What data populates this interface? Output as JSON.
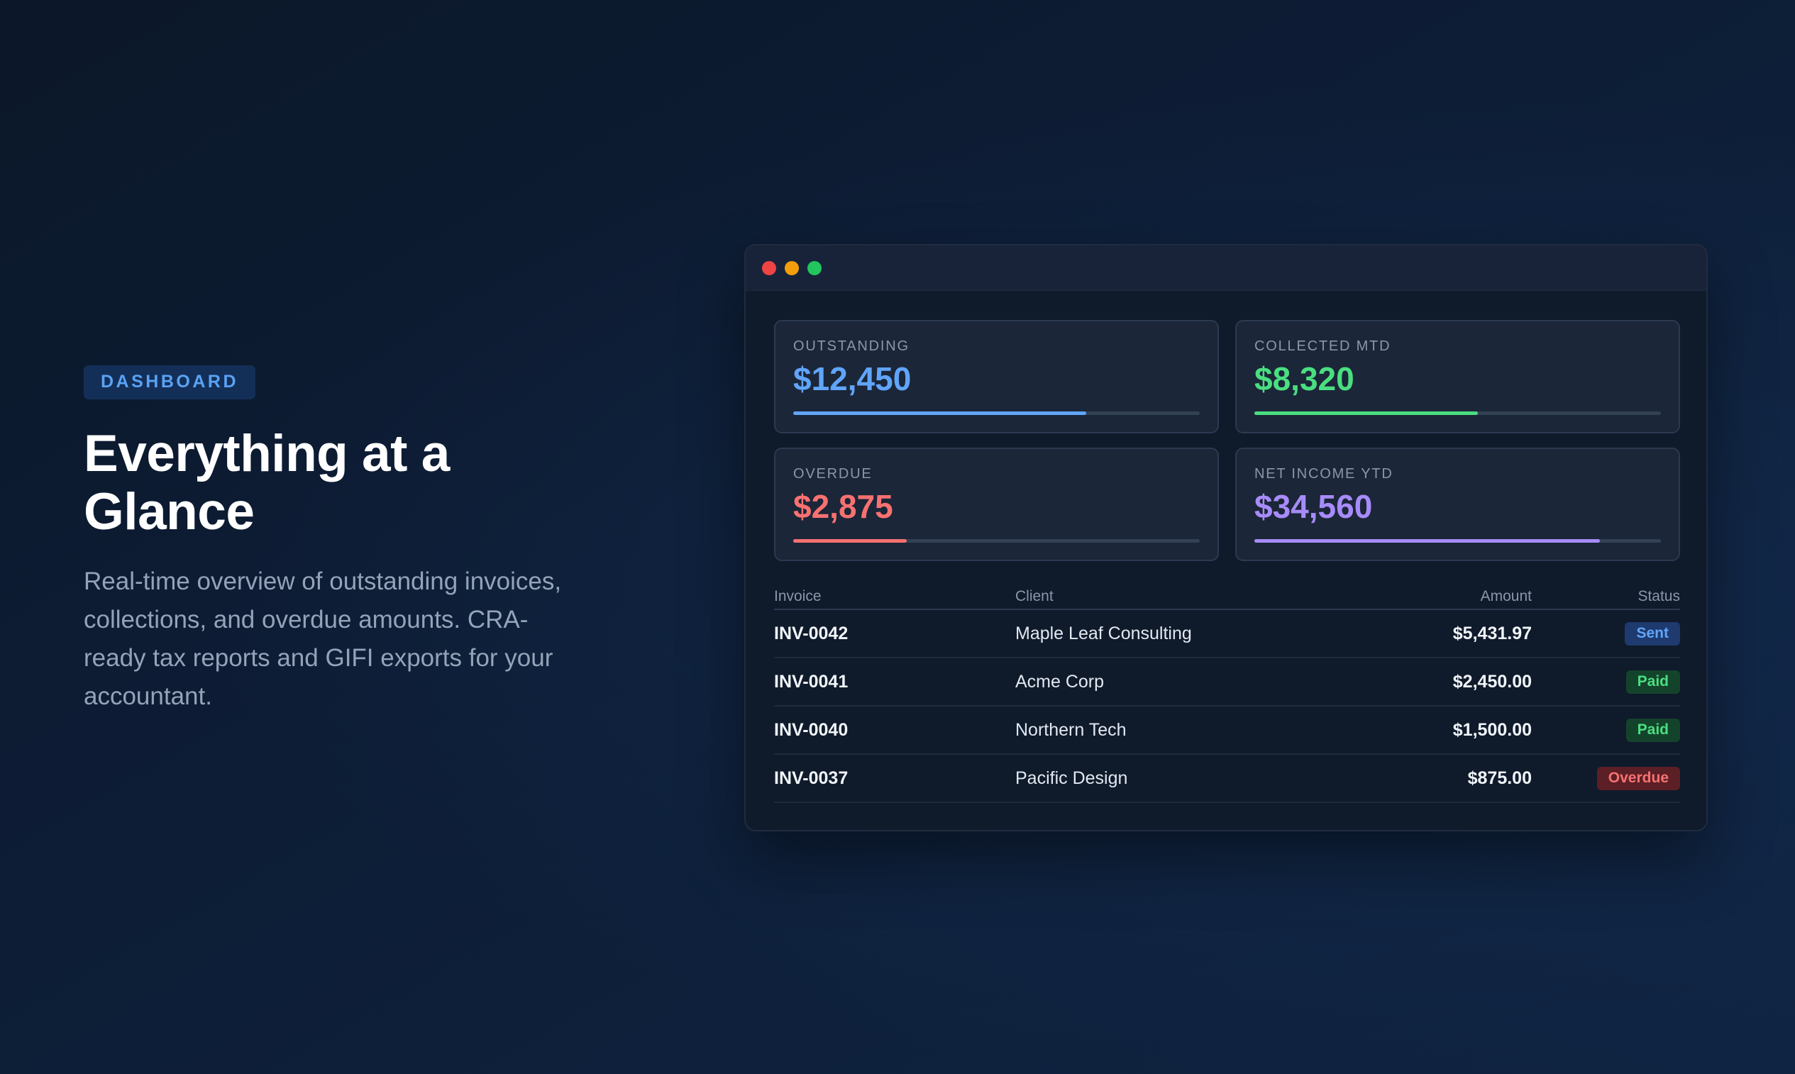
{
  "hero": {
    "eyebrow": "DASHBOARD",
    "title_line1": "Everything at a",
    "title_line2": "Glance",
    "description": "Real-time overview of outstanding invoices, collections, and overdue amounts. CRA-ready tax reports and GIFI exports for your accountant."
  },
  "window": {
    "controls": [
      "close",
      "minimize",
      "maximize"
    ]
  },
  "cards": [
    {
      "label": "OUTSTANDING",
      "value": "$12,450",
      "color": "#60a5fa",
      "progress": 0.72
    },
    {
      "label": "COLLECTED MTD",
      "value": "$8,320",
      "color": "#4ade80",
      "progress": 0.55
    },
    {
      "label": "OVERDUE",
      "value": "$2,875",
      "color": "#f87171",
      "progress": 0.28
    },
    {
      "label": "NET INCOME YTD",
      "value": "$34,560",
      "color": "#a78bfa",
      "progress": 0.85
    }
  ],
  "table": {
    "headers": {
      "invoice": "Invoice",
      "client": "Client",
      "amount": "Amount",
      "status": "Status"
    },
    "rows": [
      {
        "invoice": "INV-0042",
        "client": "Maple Leaf Consulting",
        "amount": "$5,431.97",
        "status": "Sent",
        "status_fg": "#60a5fa",
        "status_bg": "#1e3a6e"
      },
      {
        "invoice": "INV-0041",
        "client": "Acme Corp",
        "amount": "$2,450.00",
        "status": "Paid",
        "status_fg": "#4ade80",
        "status_bg": "#14432c"
      },
      {
        "invoice": "INV-0040",
        "client": "Northern Tech",
        "amount": "$1,500.00",
        "status": "Paid",
        "status_fg": "#4ade80",
        "status_bg": "#14432c"
      },
      {
        "invoice": "INV-0037",
        "client": "Pacific Design",
        "amount": "$875.00",
        "status": "Overdue",
        "status_fg": "#f87171",
        "status_bg": "#5c1f26"
      }
    ]
  }
}
